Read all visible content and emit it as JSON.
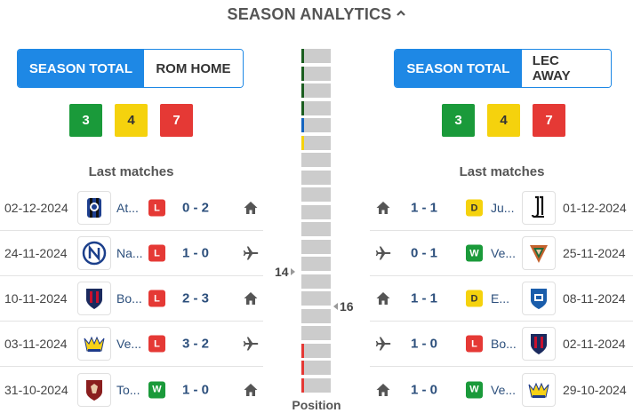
{
  "header": {
    "title": "SEASON ANALYTICS",
    "icon": "chevron-up-icon"
  },
  "colors": {
    "accent": "#1e88e5",
    "win": "#1a9a3a",
    "draw": "#f5d20d",
    "loss": "#e53935",
    "team_text": "#2c4f7c"
  },
  "left": {
    "toggle": {
      "active": "SEASON TOTAL",
      "inactive": "ROM HOME"
    },
    "counts": {
      "win": "3",
      "draw": "4",
      "loss": "7"
    },
    "last_matches_title": "Last matches",
    "matches": [
      {
        "date": "02-12-2024",
        "team": "At...",
        "logo": "atalanta-logo",
        "result": "L",
        "score": "0 - 2",
        "venue": "home"
      },
      {
        "date": "24-11-2024",
        "team": "Na...",
        "logo": "napoli-logo",
        "result": "L",
        "score": "1 - 0",
        "venue": "away"
      },
      {
        "date": "10-11-2024",
        "team": "Bo...",
        "logo": "bologna-logo",
        "result": "L",
        "score": "2 - 3",
        "venue": "home"
      },
      {
        "date": "03-11-2024",
        "team": "Ve...",
        "logo": "verona-logo",
        "result": "L",
        "score": "3 - 2",
        "venue": "away"
      },
      {
        "date": "31-10-2024",
        "team": "To...",
        "logo": "torino-logo",
        "result": "W",
        "score": "1 - 0",
        "venue": "home"
      }
    ]
  },
  "right": {
    "toggle": {
      "active": "SEASON TOTAL",
      "inactive": "LEC AWAY"
    },
    "counts": {
      "win": "3",
      "draw": "4",
      "loss": "7"
    },
    "last_matches_title": "Last matches",
    "matches": [
      {
        "date": "01-12-2024",
        "team": "Ju...",
        "logo": "juventus-logo",
        "result": "D",
        "score": "1 - 1",
        "venue": "home"
      },
      {
        "date": "25-11-2024",
        "team": "Ve...",
        "logo": "venezia-logo",
        "result": "W",
        "score": "0 - 1",
        "venue": "away"
      },
      {
        "date": "08-11-2024",
        "team": "E...",
        "logo": "empoli-logo",
        "result": "D",
        "score": "1 - 1",
        "venue": "home"
      },
      {
        "date": "02-11-2024",
        "team": "Bo...",
        "logo": "bologna-logo",
        "result": "L",
        "score": "1 - 0",
        "venue": "away"
      },
      {
        "date": "29-10-2024",
        "team": "Ve...",
        "logo": "verona-logo",
        "result": "W",
        "score": "1 - 0",
        "venue": "home"
      }
    ]
  },
  "position": {
    "label": "Position",
    "total": 20,
    "home_team_position": "14",
    "away_team_position": "16",
    "zone_colors": [
      "#1b5e20",
      "#1b5e20",
      "#1b5e20",
      "#1b5e20",
      "#1565c0",
      "#f5d20d",
      "",
      "",
      "",
      "",
      "",
      "",
      "",
      "",
      "",
      "",
      "",
      "#e53935",
      "#e53935",
      "#e53935"
    ]
  }
}
